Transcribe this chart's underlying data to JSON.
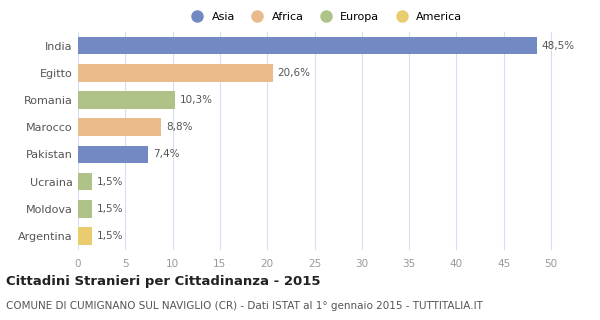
{
  "categories": [
    "India",
    "Egitto",
    "Romania",
    "Marocco",
    "Pakistan",
    "Ucraina",
    "Moldova",
    "Argentina"
  ],
  "values": [
    48.5,
    20.6,
    10.3,
    8.8,
    7.4,
    1.5,
    1.5,
    1.5
  ],
  "labels": [
    "48,5%",
    "20,6%",
    "10,3%",
    "8,8%",
    "7,4%",
    "1,5%",
    "1,5%",
    "1,5%"
  ],
  "colors": [
    "#7289c4",
    "#e8ba8c",
    "#afc287",
    "#e8ba8c",
    "#7289c4",
    "#afc287",
    "#afc287",
    "#e8cc6e"
  ],
  "legend_labels": [
    "Asia",
    "Africa",
    "Europa",
    "America"
  ],
  "legend_colors": [
    "#7289c4",
    "#e8ba8c",
    "#afc287",
    "#e8cc6e"
  ],
  "xlim": [
    0,
    52
  ],
  "xticks": [
    0,
    5,
    10,
    15,
    20,
    25,
    30,
    35,
    40,
    45,
    50
  ],
  "title": "Cittadini Stranieri per Cittadinanza - 2015",
  "subtitle": "COMUNE DI CUMIGNANO SUL NAVIGLIO (CR) - Dati ISTAT al 1° gennaio 2015 - TUTTITALIA.IT",
  "title_fontsize": 9.5,
  "subtitle_fontsize": 7.5,
  "bar_label_fontsize": 7.5,
  "tick_fontsize": 7.5,
  "ytick_fontsize": 8,
  "legend_fontsize": 8,
  "background_color": "#ffffff",
  "grid_color": "#d5dff0",
  "bar_height": 0.65
}
